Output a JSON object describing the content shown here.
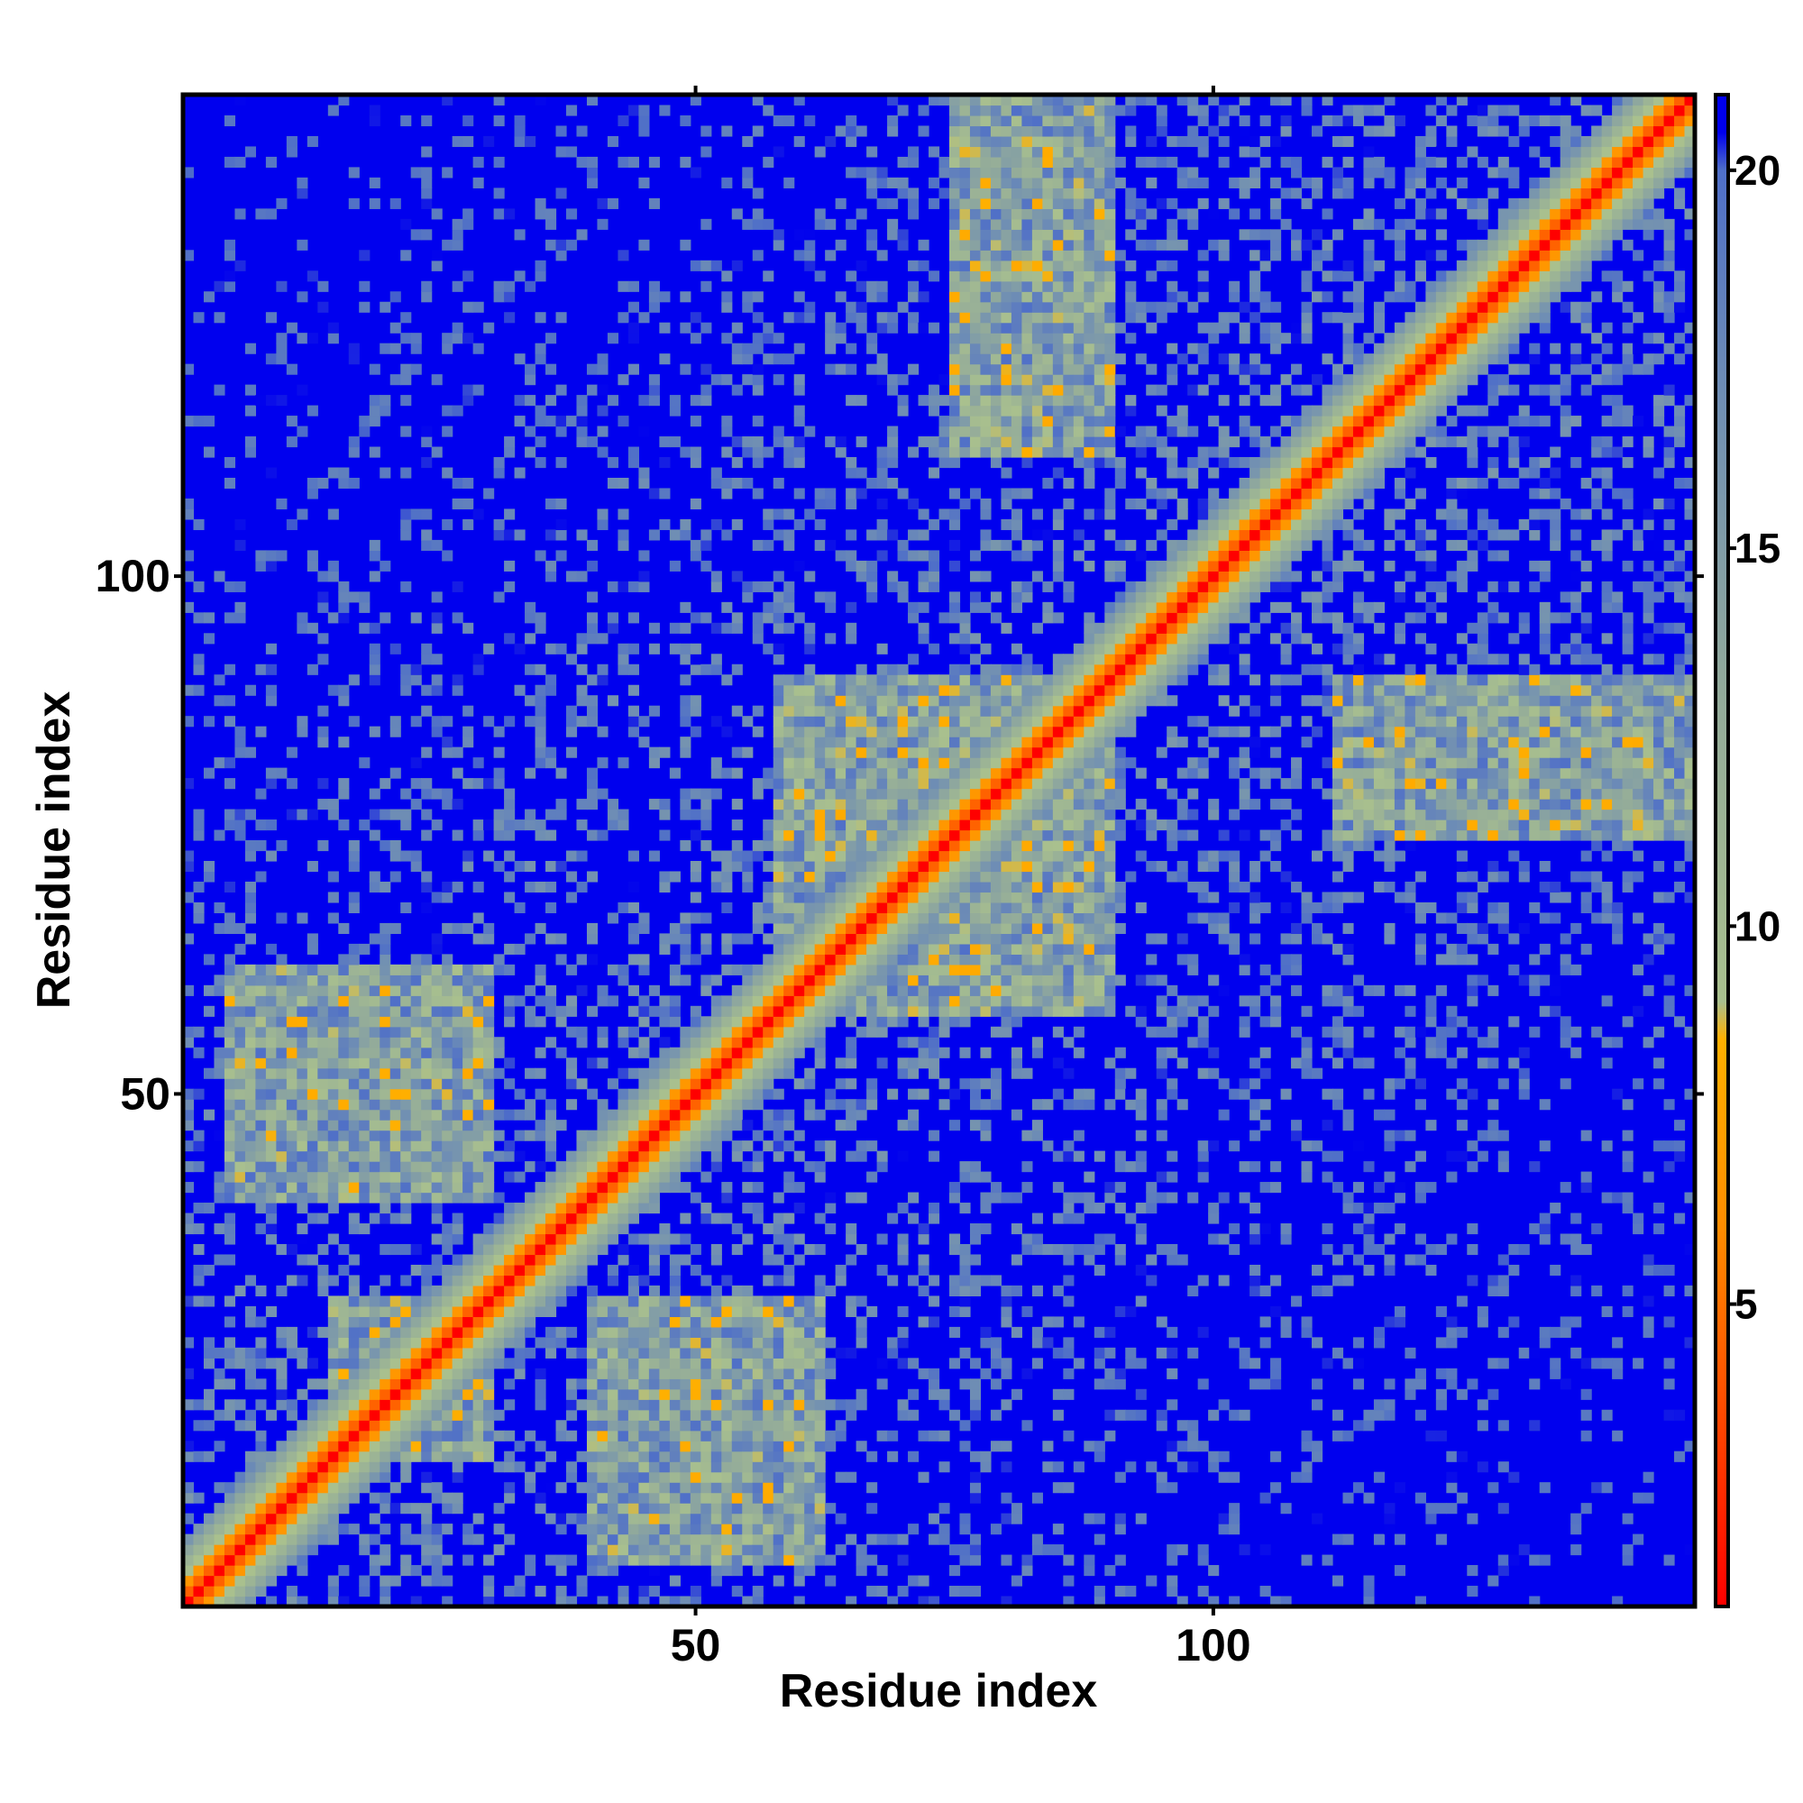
{
  "chart_data": {
    "type": "heatmap",
    "title": "",
    "xlabel": "Residue index",
    "ylabel": "Residue index",
    "n_residues": 146,
    "xlim": [
      1,
      146
    ],
    "ylim": [
      1,
      146
    ],
    "x_ticks": [
      50,
      100
    ],
    "y_ticks": [
      50,
      100
    ],
    "colorbar": {
      "range": [
        1,
        21
      ],
      "ticks": [
        5,
        10,
        15,
        20
      ],
      "stops": [
        {
          "value": 1,
          "color": "#ff0000"
        },
        {
          "value": 3,
          "color": "#ff3a00"
        },
        {
          "value": 6,
          "color": "#ff8c00"
        },
        {
          "value": 8.5,
          "color": "#ffb000"
        },
        {
          "value": 9,
          "color": "#a9c08e"
        },
        {
          "value": 13,
          "color": "#93ab9a"
        },
        {
          "value": 17,
          "color": "#6f8eb4"
        },
        {
          "value": 20,
          "color": "#4f6fc8"
        },
        {
          "value": 20.5,
          "color": "#0000ee"
        }
      ]
    },
    "matrix_description": "Symmetric residue-residue distance matrix; distances > 20 shown in blue",
    "background_color": "#0000ee",
    "near_diagonal_color": "#ff0000",
    "close_contact_regions": [
      {
        "x": [
          15,
          30
        ],
        "y": [
          15,
          30
        ]
      },
      {
        "x": [
          58,
          90
        ],
        "y": [
          58,
          90
        ]
      },
      {
        "x": [
          75,
          90
        ],
        "y": [
          112,
          146
        ]
      },
      {
        "x": [
          112,
          146
        ],
        "y": [
          75,
          90
        ]
      },
      {
        "x": [
          5,
          30
        ],
        "y": [
          40,
          62
        ]
      },
      {
        "x": [
          40,
          62
        ],
        "y": [
          5,
          30
        ]
      }
    ]
  }
}
